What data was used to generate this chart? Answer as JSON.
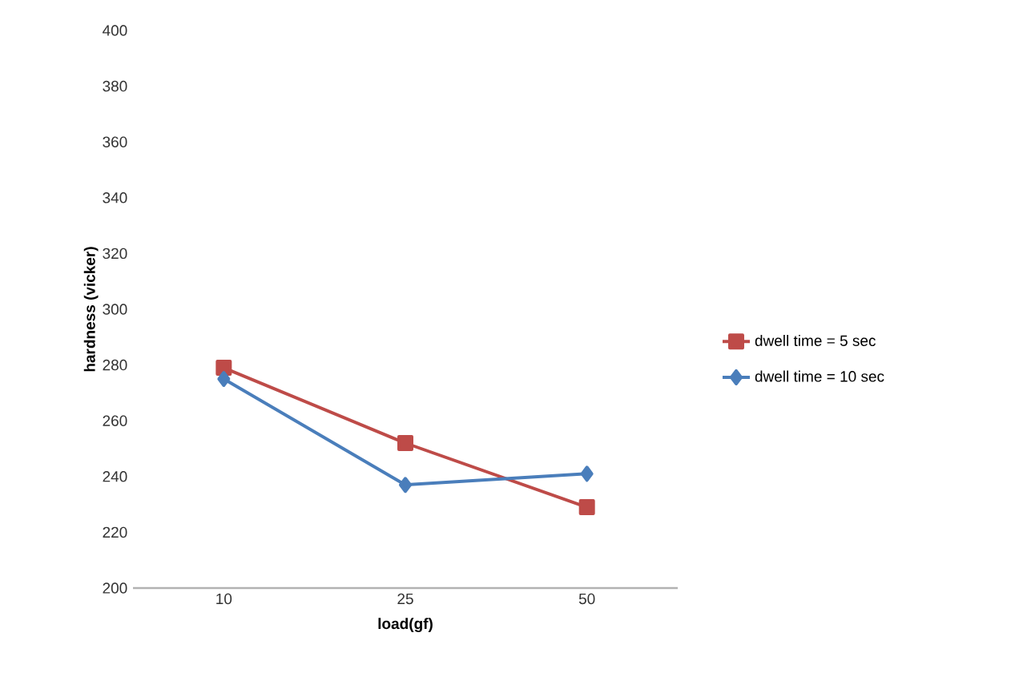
{
  "chart_data": {
    "type": "line",
    "xlabel": "load(gf)",
    "ylabel": "hardness (vicker)",
    "categories": [
      "10",
      "25",
      "50"
    ],
    "series": [
      {
        "name": "dwell time = 5 sec",
        "color": "#be4b48",
        "marker": "square",
        "values": [
          279,
          252,
          229
        ]
      },
      {
        "name": "dwell time = 10 sec",
        "color": "#4a7ebb",
        "marker": "diamond",
        "values": [
          275,
          237,
          241
        ]
      }
    ],
    "ylim": [
      200,
      400
    ],
    "yticks": [
      200,
      220,
      240,
      260,
      280,
      300,
      320,
      340,
      360,
      380,
      400
    ],
    "grid": false,
    "legend": "right"
  }
}
